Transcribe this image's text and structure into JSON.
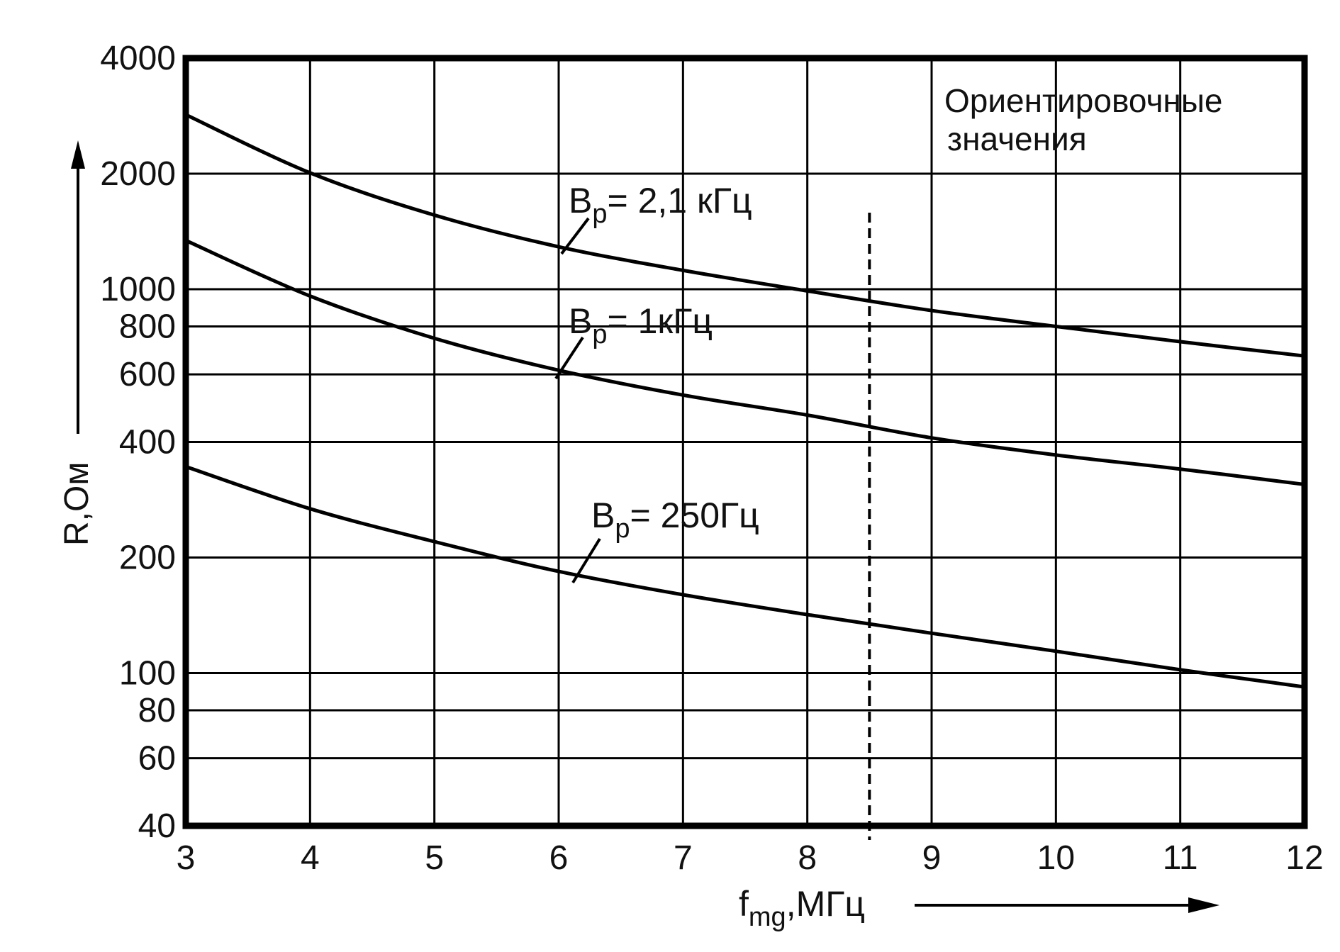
{
  "chart_data": {
    "type": "line",
    "title": "",
    "xlabel": {
      "main": "f",
      "sub": "mg",
      "rest": ",МГц"
    },
    "ylabel": "R,Ом",
    "xlim": [
      3,
      12
    ],
    "ylim": [
      40,
      4000
    ],
    "yscale": "log",
    "grid": true,
    "x_ticks": [
      3,
      4,
      5,
      6,
      7,
      8,
      9,
      10,
      11,
      12
    ],
    "x_tick_labels": [
      "3",
      "4",
      "5",
      "6",
      "7",
      "8",
      "9",
      "10",
      "11",
      "12"
    ],
    "y_ticks": [
      40,
      60,
      80,
      100,
      200,
      400,
      600,
      800,
      1000,
      2000,
      4000
    ],
    "y_tick_labels": [
      "40",
      "60",
      "80",
      "100",
      "200",
      "400",
      "600",
      "800",
      "1000",
      "2000",
      "4000"
    ],
    "marker_x": 8.5,
    "annotation": {
      "line1": "Ориентировочные",
      "line2": "значения"
    },
    "series": [
      {
        "label": {
          "main": "B",
          "sub": "p",
          "rest": "= 2,1 кГц"
        },
        "x": [
          3,
          4,
          5,
          6,
          7,
          8,
          9,
          10,
          11,
          12
        ],
        "y": [
          2850,
          2010,
          1560,
          1290,
          1120,
          990,
          880,
          800,
          730,
          670
        ]
      },
      {
        "label": {
          "main": "B",
          "sub": "p",
          "rest": "= 1кГц"
        },
        "x": [
          3,
          4,
          5,
          6,
          7,
          8,
          9,
          10,
          11,
          12
        ],
        "y": [
          1340,
          960,
          745,
          615,
          530,
          470,
          410,
          370,
          340,
          310
        ]
      },
      {
        "label": {
          "main": "B",
          "sub": "p",
          "rest": "= 250Гц"
        },
        "x": [
          3,
          4,
          5,
          6,
          7,
          8,
          9,
          10,
          11,
          12
        ],
        "y": [
          345,
          268,
          220,
          184,
          160,
          142,
          127,
          114,
          102,
          92
        ]
      }
    ]
  }
}
